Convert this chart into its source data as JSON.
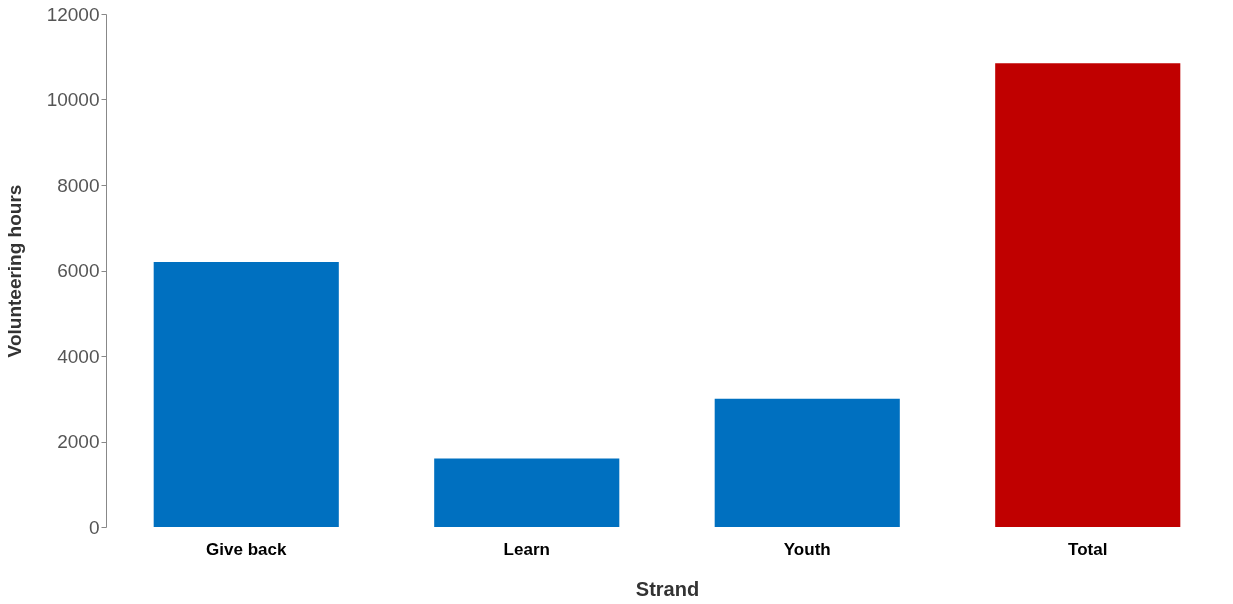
{
  "chart_data": {
    "type": "bar",
    "xlabel": "Strand",
    "ylabel": "Volunteering hours",
    "categories": [
      "Give back",
      "Learn",
      "Youth",
      "Total"
    ],
    "values": [
      6200,
      1600,
      3000,
      10850
    ],
    "colors": [
      "#0070c0",
      "#0070c0",
      "#0070c0",
      "#c00000"
    ],
    "ylim": [
      0,
      12000
    ],
    "yticks": [
      0,
      2000,
      4000,
      6000,
      8000,
      10000,
      12000
    ],
    "grid": false
  }
}
